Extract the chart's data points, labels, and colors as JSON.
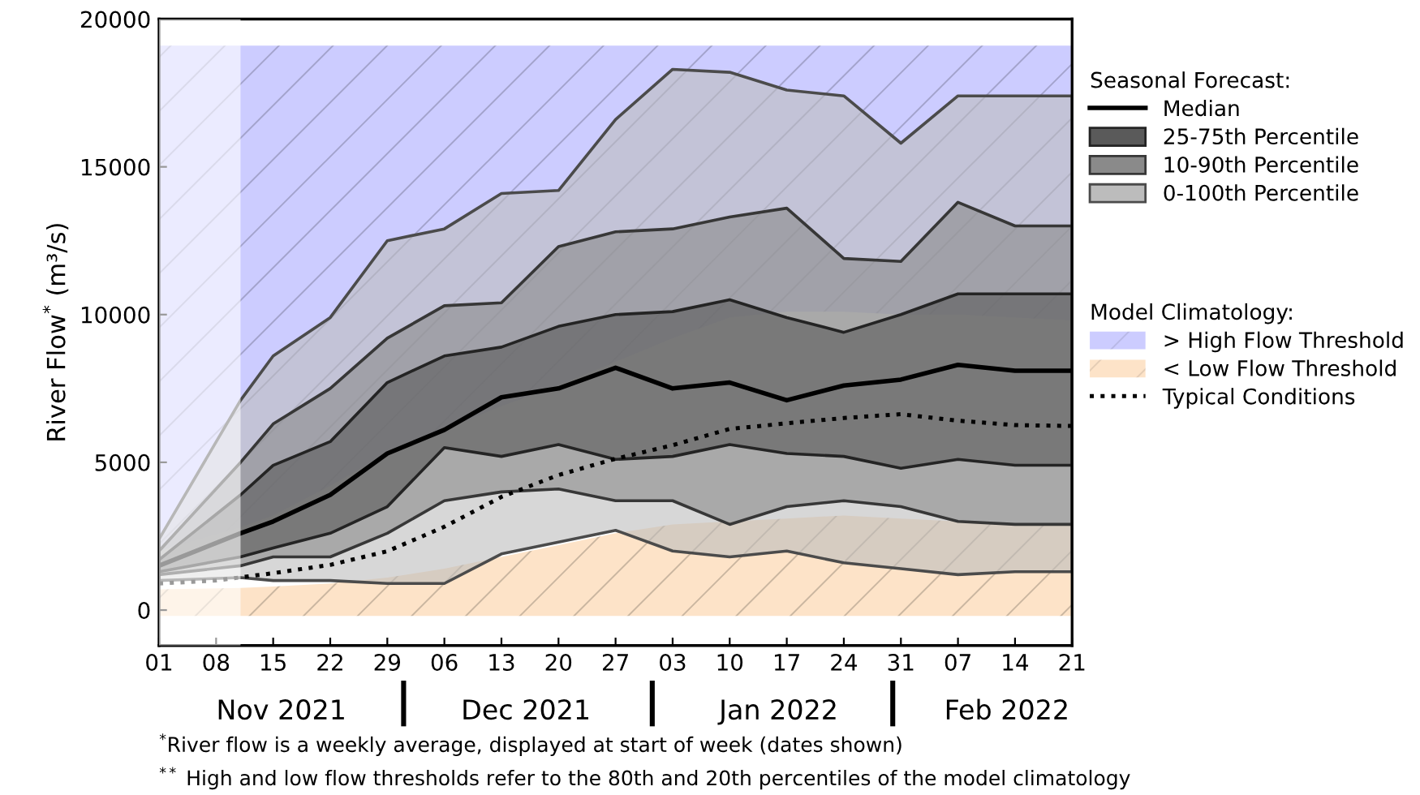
{
  "chart_data": {
    "type": "line",
    "ylabel": "River Flow$^{*}$ (m³/s)",
    "xlim": [
      "2021-11-01",
      "2022-02-21"
    ],
    "xticks": [
      {
        "value": "2021-11-01",
        "label": "01"
      },
      {
        "value": "2021-11-08",
        "label": "08"
      },
      {
        "value": "2021-11-15",
        "label": "15"
      },
      {
        "value": "2021-11-22",
        "label": "22"
      },
      {
        "value": "2021-11-29",
        "label": "29"
      },
      {
        "value": "2021-12-06",
        "label": "06"
      },
      {
        "value": "2021-12-13",
        "label": "13"
      },
      {
        "value": "2021-12-20",
        "label": "20"
      },
      {
        "value": "2021-12-27",
        "label": "27"
      },
      {
        "value": "2022-01-03",
        "label": "03"
      },
      {
        "value": "2022-01-10",
        "label": "10"
      },
      {
        "value": "2022-01-17",
        "label": "17"
      },
      {
        "value": "2022-01-24",
        "label": "24"
      },
      {
        "value": "2022-01-31",
        "label": "31"
      },
      {
        "value": "2022-02-07",
        "label": "07"
      },
      {
        "value": "2022-02-14",
        "label": "14"
      },
      {
        "value": "2022-02-21",
        "label": "21"
      }
    ],
    "x2lim": [
      "2021-11-01",
      "2022-02-21"
    ],
    "x2ticks": [
      {
        "value": "2021-11-16",
        "label": "Nov 2021"
      },
      {
        "value": "2021-12-16",
        "label": "Dec 2021"
      },
      {
        "value": "2022-01-16",
        "label": "Jan 2022"
      },
      {
        "value": "2022-02-13",
        "label": "Feb 2022"
      }
    ],
    "ylim": [
      -1200,
      20000
    ],
    "yticks": [
      0,
      5000,
      10000,
      15000,
      20000
    ],
    "legend": "right",
    "legend_title": [
      "Seasonal Forecast:",
      "Model Climatology:"
    ],
    "x": [
      "2021-11-01",
      "2021-11-11",
      "2021-11-15",
      "2021-11-22",
      "2021-11-29",
      "2021-12-06",
      "2021-12-13",
      "2021-12-20",
      "2021-12-27",
      "2022-01-03",
      "2022-01-10",
      "2022-01-17",
      "2022-01-24",
      "2022-01-31",
      "2022-02-07",
      "2022-02-14",
      "2022-02-21"
    ],
    "series": [
      {
        "name": "Median",
        "color": "#000000",
        "line_style": "solid",
        "values": [
          1500,
          2600,
          3000,
          3900,
          5300,
          6100,
          7200,
          7500,
          8200,
          7500,
          7700,
          7100,
          7600,
          7800,
          8300,
          8100,
          8100
        ]
      },
      {
        "name": "25-75th Percentile",
        "color": "#5a5a5a",
        "values": [
          null,
          null,
          null,
          null,
          null,
          null,
          null,
          null,
          null,
          null,
          null,
          null,
          null,
          null,
          null,
          null,
          null
        ],
        "lower": [
          1300,
          1800,
          2100,
          2600,
          3500,
          5500,
          5200,
          5600,
          5100,
          5200,
          5600,
          5300,
          5200,
          4800,
          5100,
          4900,
          4900
        ],
        "upper": [
          1700,
          3900,
          4900,
          5700,
          7700,
          8600,
          8900,
          9600,
          10000,
          10100,
          10500,
          9900,
          9400,
          10000,
          10700,
          10700,
          10700
        ]
      },
      {
        "name": "10-90th Percentile",
        "color": "#8a8a8a",
        "values": [
          null,
          null,
          null,
          null,
          null,
          null,
          null,
          null,
          null,
          null,
          null,
          null,
          null,
          null,
          null,
          null,
          null
        ],
        "lower": [
          1200,
          1500,
          1800,
          1800,
          2600,
          3700,
          4000,
          4100,
          3700,
          3700,
          2900,
          3500,
          3700,
          3500,
          3000,
          2900,
          2900
        ],
        "upper": [
          2000,
          5000,
          6300,
          7500,
          9200,
          10300,
          10400,
          12300,
          12800,
          12900,
          13300,
          13600,
          11900,
          11800,
          13800,
          13000,
          13000
        ]
      },
      {
        "name": "0-100th Percentile",
        "color": "#bcbcbc",
        "values": [
          null,
          null,
          null,
          null,
          null,
          null,
          null,
          null,
          null,
          null,
          null,
          null,
          null,
          null,
          null,
          null,
          null
        ],
        "lower": [
          1000,
          1100,
          1000,
          1000,
          900,
          900,
          1900,
          2300,
          2700,
          2000,
          1800,
          2000,
          1600,
          1400,
          1200,
          1300,
          1300
        ],
        "upper": [
          2400,
          7100,
          8600,
          9900,
          12500,
          12900,
          14100,
          14200,
          16600,
          18300,
          18200,
          17600,
          17400,
          15800,
          17400,
          17400,
          17400
        ]
      },
      {
        "name": "> High Flow Threshold",
        "color": "#ccccff",
        "values": [
          null,
          null,
          null,
          null,
          null,
          null,
          null,
          null,
          null,
          null,
          null,
          null,
          null,
          null,
          null,
          null,
          null
        ],
        "lower": [
          2000,
          2800,
          3200,
          4200,
          5300,
          6100,
          6900,
          7600,
          8400,
          9200,
          9900,
          10100,
          10100,
          10000,
          10000,
          9900,
          9800
        ],
        "upper": [
          19100,
          19100,
          19100,
          19100,
          19100,
          19100,
          19100,
          19100,
          19100,
          19100,
          19100,
          19100,
          19100,
          19100,
          19100,
          19100,
          19100
        ]
      },
      {
        "name": "< Low Flow Threshold",
        "color": "#fde3c8",
        "values": [
          null,
          null,
          null,
          null,
          null,
          null,
          null,
          null,
          null,
          null,
          null,
          null,
          null,
          null,
          null,
          null,
          null
        ],
        "lower": [
          -200,
          -200,
          -200,
          -200,
          -200,
          -200,
          -200,
          -200,
          -200,
          -200,
          -200,
          -200,
          -200,
          -200,
          -200,
          -200,
          -200
        ],
        "upper": [
          700,
          750,
          800,
          900,
          1100,
          1400,
          1800,
          2200,
          2600,
          2900,
          3000,
          3100,
          3200,
          3100,
          3000,
          2900,
          2900
        ]
      },
      {
        "name": "Typical Conditions",
        "color": "#000000",
        "line_style": "dotted",
        "x": [
          "2021-11-01",
          "2021-11-08",
          "2021-11-15",
          "2021-11-22",
          "2021-11-29",
          "2021-12-06",
          "2021-12-13",
          "2021-12-20",
          "2021-12-27",
          "2022-01-03",
          "2022-01-10",
          "2022-01-17",
          "2022-01-24",
          "2022-01-31",
          "2022-02-07",
          "2022-02-14",
          "2022-02-21"
        ],
        "values": [
          900,
          1000,
          1250,
          1530,
          1990,
          2820,
          3830,
          4570,
          5120,
          5580,
          6130,
          6320,
          6500,
          6630,
          6410,
          6260,
          6230
        ]
      }
    ],
    "bands": [
      {
        "axis": "x",
        "from": "2021-11-01",
        "to": "2021-11-11",
        "color": "#ffffff"
      }
    ],
    "annotations": [
      "$^{*}$River flow is a weekly average, displayed at start of week (dates shown)",
      "$^{**}$ High and low flow thresholds refer to the 80th and 20th percentiles of the model climatology"
    ]
  }
}
